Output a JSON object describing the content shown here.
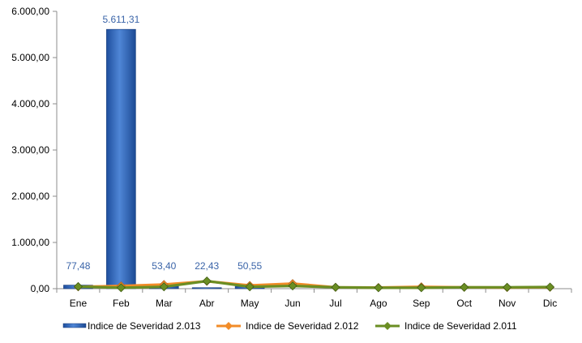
{
  "chart_data": {
    "type": "bar",
    "categories": [
      "Ene",
      "Feb",
      "Mar",
      "Abr",
      "May",
      "Jun",
      "Jul",
      "Ago",
      "Sep",
      "Oct",
      "Nov",
      "Dic"
    ],
    "ylim": [
      0,
      6000
    ],
    "yticks": [
      0,
      1000,
      2000,
      3000,
      4000,
      5000,
      6000
    ],
    "ytick_labels": [
      "0,00",
      "1.000,00",
      "2.000,00",
      "3.000,00",
      "4.000,00",
      "5.000,00",
      "6.000,00"
    ],
    "grid": false,
    "legend_position": "bottom",
    "series": [
      {
        "name": "Indice de Severidad 2.013",
        "kind": "bar",
        "color": "#2e62b4",
        "values": [
          77.48,
          5611.31,
          53.4,
          22.43,
          50.55,
          null,
          null,
          null,
          null,
          null,
          null,
          null
        ],
        "labels": [
          "77,48",
          "5.611,31",
          "53,40",
          "22,43",
          "50,55",
          "",
          "",
          "",
          "",
          "",
          "",
          ""
        ]
      },
      {
        "name": "Indice de Severidad 2.012",
        "kind": "line",
        "color": "#f28c28",
        "values": [
          40,
          60,
          90,
          160,
          70,
          110,
          30,
          25,
          40,
          30,
          25,
          30
        ]
      },
      {
        "name": "Indice de Severidad 2.011",
        "kind": "line",
        "color": "#6b8e23",
        "values": [
          45,
          20,
          40,
          165,
          40,
          60,
          30,
          20,
          20,
          30,
          30,
          35
        ]
      }
    ]
  }
}
